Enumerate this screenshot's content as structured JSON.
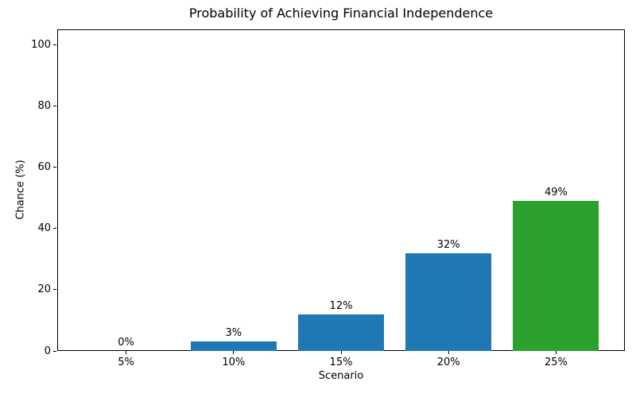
{
  "chart_data": {
    "type": "bar",
    "title": "Probability of Achieving Financial Independence",
    "xlabel": "Scenario",
    "ylabel": "Chance (%)",
    "categories": [
      "5%",
      "10%",
      "15%",
      "20%",
      "25%"
    ],
    "values": [
      0,
      3,
      12,
      32,
      49
    ],
    "bar_labels": [
      "0%",
      "3%",
      "12%",
      "32%",
      "49%"
    ],
    "bar_colors": [
      "#1f77b4",
      "#1f77b4",
      "#1f77b4",
      "#1f77b4",
      "#2ca02c"
    ],
    "yticks": [
      0,
      20,
      40,
      60,
      80,
      100
    ],
    "ylim": [
      0,
      105
    ],
    "grid": false,
    "legend_position": "none",
    "plot_background": "#ffffff",
    "spine_color": "#000000"
  }
}
